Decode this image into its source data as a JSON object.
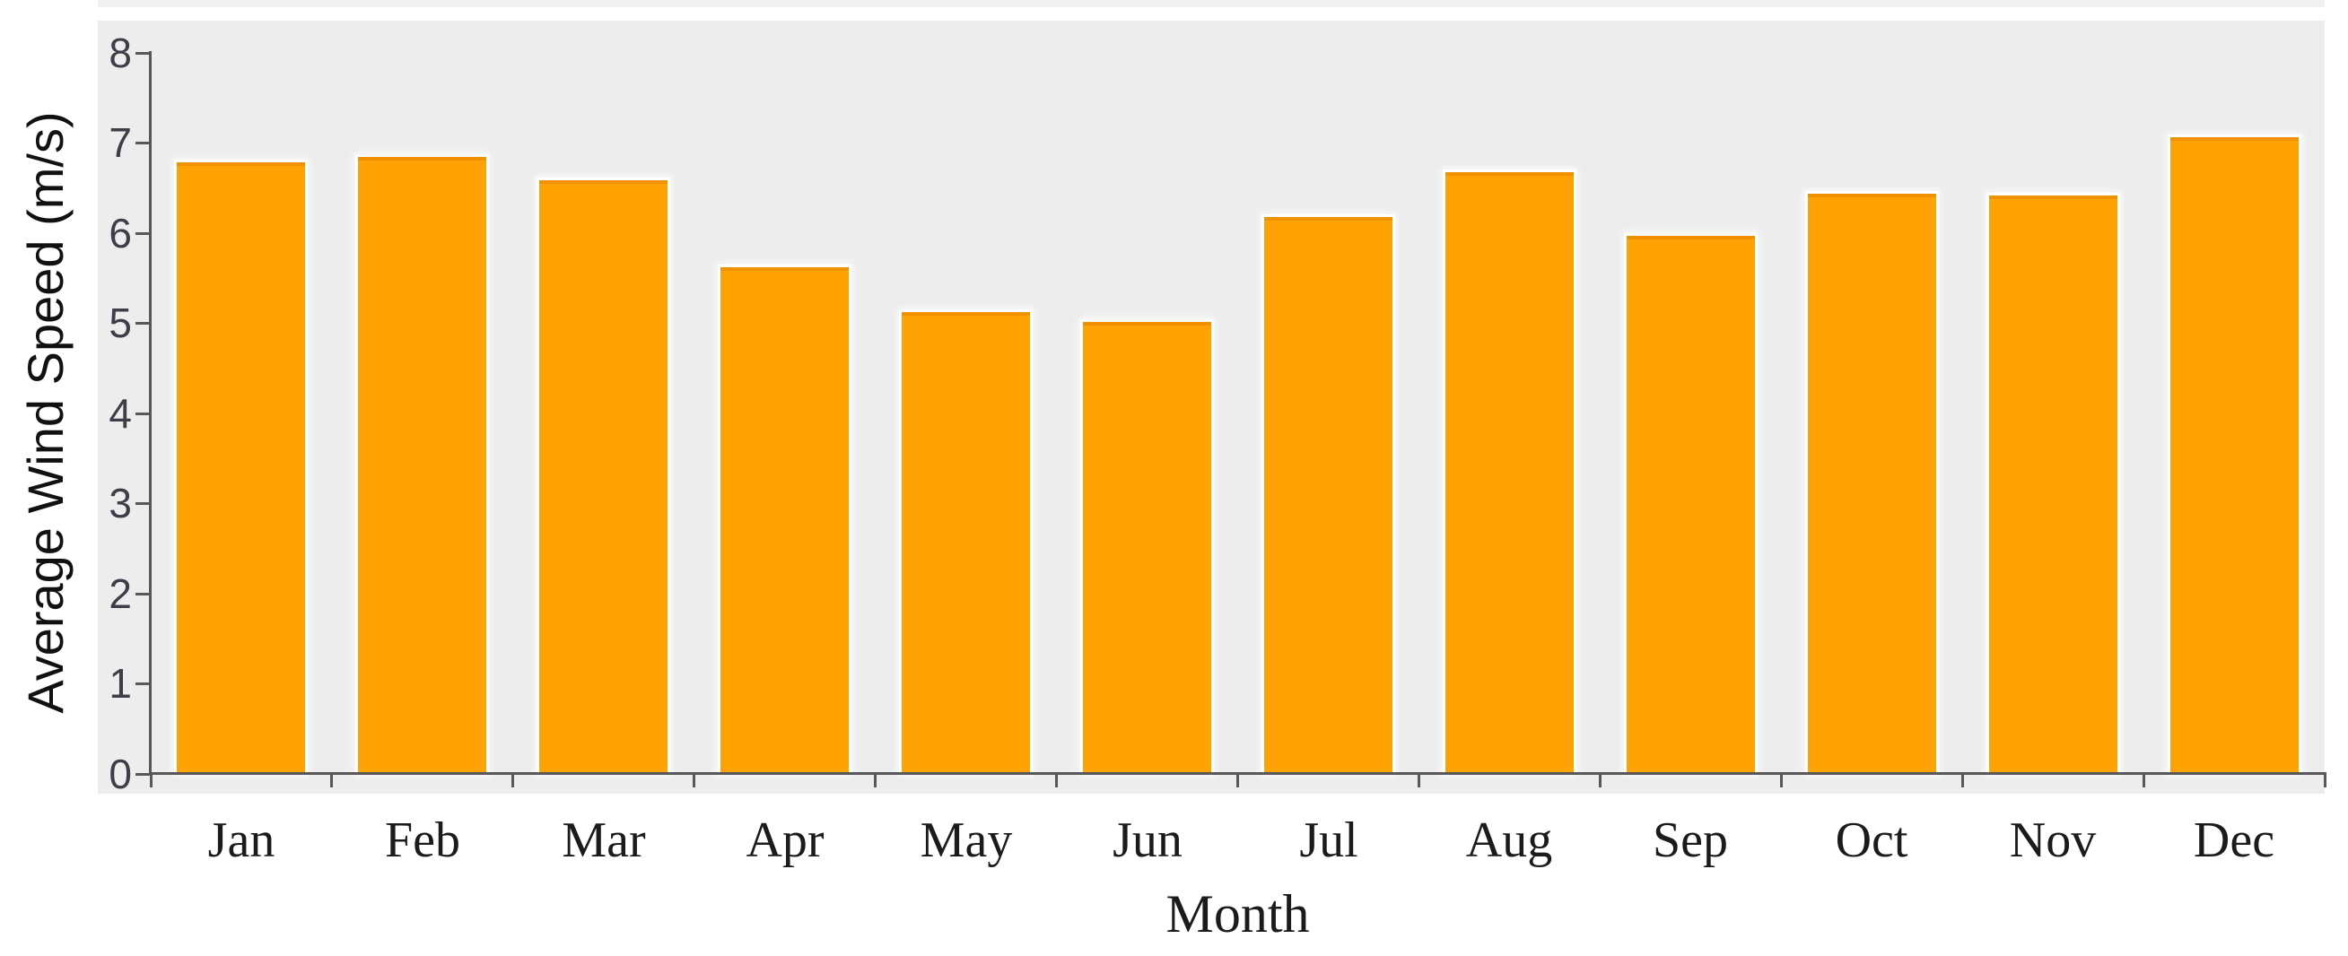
{
  "chart_data": {
    "type": "bar",
    "title": "",
    "xlabel": "Month",
    "ylabel": "Average Wind Speed (m/s)",
    "categories": [
      "Jan",
      "Feb",
      "Mar",
      "Apr",
      "May",
      "Jun",
      "Jul",
      "Aug",
      "Sep",
      "Oct",
      "Nov",
      "Dec"
    ],
    "values": [
      6.78,
      6.84,
      6.58,
      5.62,
      5.12,
      5.01,
      6.18,
      6.67,
      5.97,
      6.43,
      6.41,
      7.06
    ],
    "ylim": [
      0,
      8
    ],
    "yticks": [
      0,
      1,
      2,
      3,
      4,
      5,
      6,
      7,
      8
    ],
    "grid": "off",
    "legend": "none",
    "colors": {
      "bar": "#ffa305",
      "bar_top_edge": "#f09200",
      "panel_background": "#ededed",
      "axis": "#58585b",
      "y_tick_label": "#3e3e48",
      "x_tick_label": "#1b1b1b"
    }
  }
}
